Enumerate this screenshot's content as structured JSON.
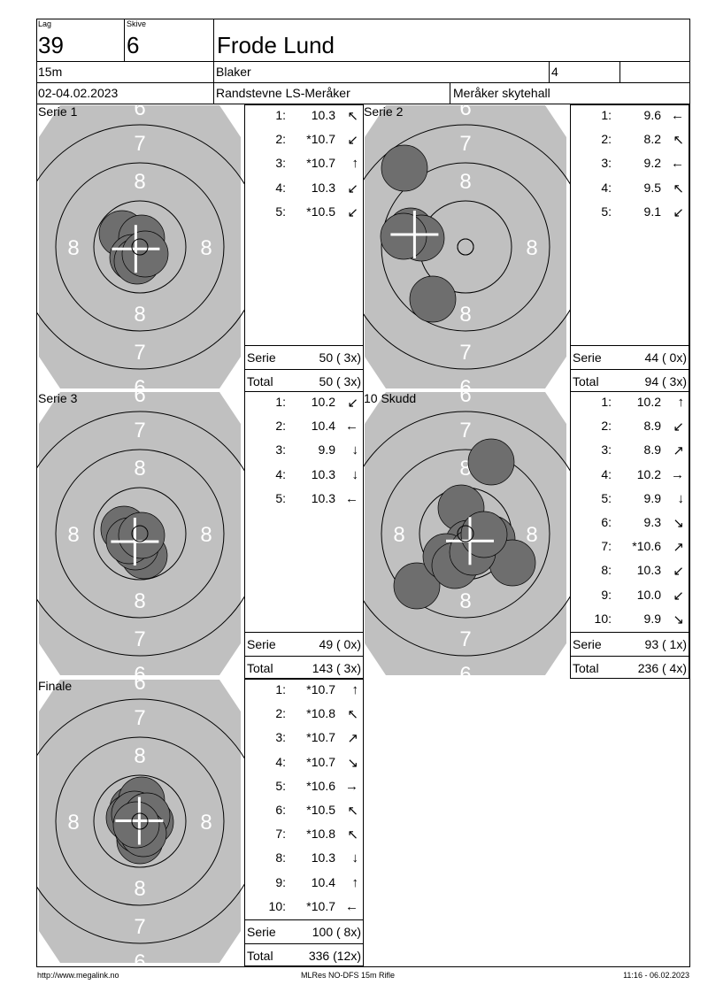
{
  "header": {
    "lag_label": "Lag",
    "lag": "39",
    "skive_label": "Skive",
    "skive": "6",
    "name": "Frode Lund",
    "distance": "15m",
    "club": "Blaker",
    "class": "4",
    "extra": "",
    "date": "02-04.02.2023",
    "event": "Randstevne LS-Meråker",
    "venue": "Meråker skytehall"
  },
  "ring_labels": [
    "6",
    "7",
    "8"
  ],
  "panels": [
    {
      "title": "Serie 1",
      "shots": [
        {
          "n": "1:",
          "v": "10.3",
          "arrow": "↖"
        },
        {
          "n": "2:",
          "v": "*10.7",
          "arrow": "↙"
        },
        {
          "n": "3:",
          "v": "*10.7",
          "arrow": "↑"
        },
        {
          "n": "4:",
          "v": "10.3",
          "arrow": "↙"
        },
        {
          "n": "5:",
          "v": "*10.5",
          "arrow": "↙"
        }
      ],
      "serie_label": "Serie",
      "serie": "50 ( 3x)",
      "total_label": "Total",
      "total": "50 ( 3x)"
    },
    {
      "title": "Serie 2",
      "shots": [
        {
          "n": "1:",
          "v": "9.6",
          "arrow": "←"
        },
        {
          "n": "2:",
          "v": "8.2",
          "arrow": "↖"
        },
        {
          "n": "3:",
          "v": "9.2",
          "arrow": "←"
        },
        {
          "n": "4:",
          "v": "9.5",
          "arrow": "↖"
        },
        {
          "n": "5:",
          "v": "9.1",
          "arrow": "↙"
        }
      ],
      "serie_label": "Serie",
      "serie": "44 ( 0x)",
      "total_label": "Total",
      "total": "94 ( 3x)"
    },
    {
      "title": "Serie 3",
      "shots": [
        {
          "n": "1:",
          "v": "10.2",
          "arrow": "↙"
        },
        {
          "n": "2:",
          "v": "10.4",
          "arrow": "←"
        },
        {
          "n": "3:",
          "v": "9.9",
          "arrow": "↓"
        },
        {
          "n": "4:",
          "v": "10.3",
          "arrow": "↓"
        },
        {
          "n": "5:",
          "v": "10.3",
          "arrow": "←"
        }
      ],
      "serie_label": "Serie",
      "serie": "49 ( 0x)",
      "total_label": "Total",
      "total": "143 ( 3x)"
    },
    {
      "title": "10 Skudd",
      "shots": [
        {
          "n": "1:",
          "v": "10.2",
          "arrow": "↑"
        },
        {
          "n": "2:",
          "v": "8.9",
          "arrow": "↙"
        },
        {
          "n": "3:",
          "v": "8.9",
          "arrow": "↗"
        },
        {
          "n": "4:",
          "v": "10.2",
          "arrow": "→"
        },
        {
          "n": "5:",
          "v": "9.9",
          "arrow": "↓"
        },
        {
          "n": "6:",
          "v": "9.3",
          "arrow": "↘"
        },
        {
          "n": "7:",
          "v": "*10.6",
          "arrow": "↗"
        },
        {
          "n": "8:",
          "v": "10.3",
          "arrow": "↙"
        },
        {
          "n": "9:",
          "v": "10.0",
          "arrow": "↙"
        },
        {
          "n": "10:",
          "v": "9.9",
          "arrow": "↘"
        }
      ],
      "serie_label": "Serie",
      "serie": "93 ( 1x)",
      "total_label": "Total",
      "total": "236 ( 4x)"
    },
    {
      "title": "Finale",
      "shots": [
        {
          "n": "1:",
          "v": "*10.7",
          "arrow": "↑"
        },
        {
          "n": "2:",
          "v": "*10.8",
          "arrow": "↖"
        },
        {
          "n": "3:",
          "v": "*10.7",
          "arrow": "↗"
        },
        {
          "n": "4:",
          "v": "*10.7",
          "arrow": "↘"
        },
        {
          "n": "5:",
          "v": "*10.6",
          "arrow": "→"
        },
        {
          "n": "6:",
          "v": "*10.5",
          "arrow": "↖"
        },
        {
          "n": "7:",
          "v": "*10.8",
          "arrow": "↖"
        },
        {
          "n": "8:",
          "v": "10.3",
          "arrow": "↓"
        },
        {
          "n": "9:",
          "v": "10.4",
          "arrow": "↑"
        },
        {
          "n": "10:",
          "v": "*10.7",
          "arrow": "←"
        }
      ],
      "serie_label": "Serie",
      "serie": "100 ( 8x)",
      "total_label": "Total",
      "total": "336 (12x)"
    }
  ],
  "footer": {
    "url": "http://www.megalink.no",
    "software": "MLRes NO-DFS 15m Rifle",
    "printed": "11:16 - 06.02.2023"
  },
  "colors": {
    "target": "#c0c0c0",
    "shot": "#6e6e6e",
    "ring_label": "#ffffff"
  }
}
